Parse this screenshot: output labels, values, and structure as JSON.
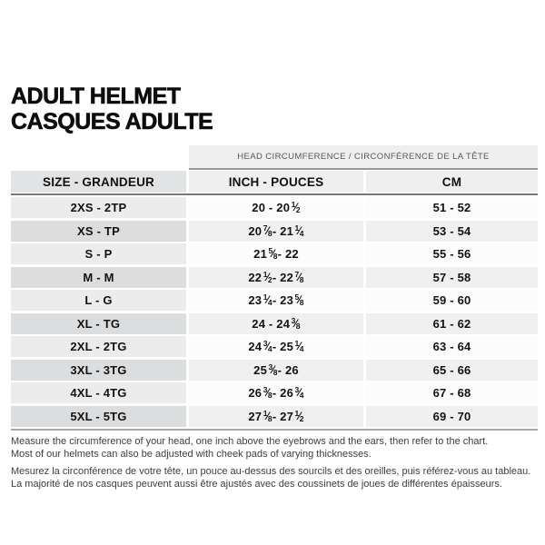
{
  "title": {
    "line1": "ADULT HELMET",
    "line2": "CASQUES ADULTE"
  },
  "table": {
    "span_header": "HEAD CIRCUMFERENCE / CIRCONFÉRENCE DE LA TÊTE",
    "columns": [
      "SIZE - GRANDEUR",
      "INCH - POUCES",
      "CM"
    ],
    "rows": [
      {
        "size": "2XS - 2TP",
        "inch": "20 - 20 1/2",
        "cm": "51 - 52"
      },
      {
        "size": "XS - TP",
        "inch": "20 7/8 - 21 1/4",
        "cm": "53 - 54"
      },
      {
        "size": "S - P",
        "inch": "21 5/8 - 22",
        "cm": "55 - 56"
      },
      {
        "size": "M - M",
        "inch": "22 1/2 - 22 7/8",
        "cm": "57 - 58"
      },
      {
        "size": "L - G",
        "inch": "23 1/4 - 23 5/8",
        "cm": "59 - 60"
      },
      {
        "size": "XL - TG",
        "inch": "24 - 24 3/8",
        "cm": "61 - 62"
      },
      {
        "size": "2XL - 2TG",
        "inch": "24 3/4 - 25 1/4",
        "cm": "63 - 64"
      },
      {
        "size": "3XL - 3TG",
        "inch": "25 3/8 - 26",
        "cm": "65 - 66"
      },
      {
        "size": "4XL - 4TG",
        "inch": "26 3/8 - 26 3/4",
        "cm": "67 - 68"
      },
      {
        "size": "5XL - 5TG",
        "inch": "27 1/8 - 27 1/2",
        "cm": "69 - 70"
      }
    ]
  },
  "notes": {
    "en": [
      "Measure the circumference of your head, one inch above the eyebrows and the ears, then refer to the chart.",
      "Most of our helmets can also be adjusted with cheek pads of varying thicknesses."
    ],
    "fr": [
      "Mesurez la circonférence de votre tête, un pouce au-dessus des sourcils et des oreilles, puis référez-vous au tableau.",
      "La majorité de nos casques peuvent aussi être ajustés avec des coussinets de joues de différentes épaisseurs."
    ]
  },
  "colors": {
    "page_background": "#ffffff",
    "band_background": "#efefef",
    "header_size_cell": "#e2e3e4",
    "row_col1_light": "#ececed",
    "row_col1_dark": "#dcddde",
    "row_alt_background": "#f0f0f1",
    "header_underline": "#77787a",
    "table_bottom_line": "#a7a9ac",
    "text": "#121212"
  }
}
